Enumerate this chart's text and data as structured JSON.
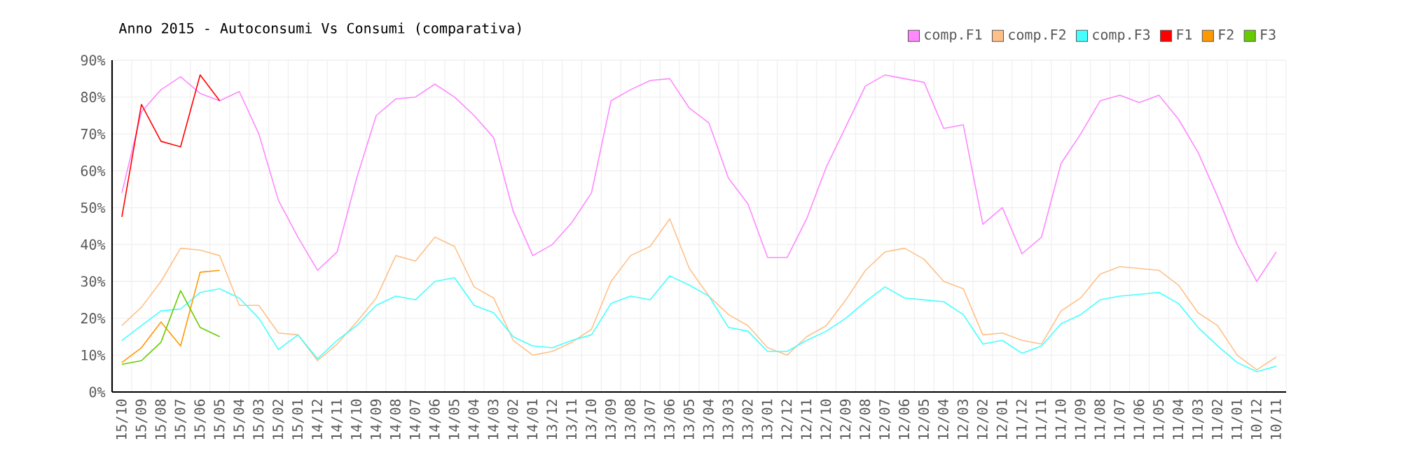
{
  "chart_data": {
    "type": "line",
    "title": "Anno 2015 - Autoconsumi Vs Consumi (comparativa)",
    "categories": [
      "15/10",
      "15/09",
      "15/08",
      "15/07",
      "15/06",
      "15/05",
      "15/04",
      "15/03",
      "15/02",
      "15/01",
      "14/12",
      "14/11",
      "14/10",
      "14/09",
      "14/08",
      "14/07",
      "14/06",
      "14/05",
      "14/04",
      "14/03",
      "14/02",
      "14/01",
      "13/12",
      "13/11",
      "13/10",
      "13/09",
      "13/08",
      "13/07",
      "13/06",
      "13/05",
      "13/04",
      "13/03",
      "13/02",
      "13/01",
      "12/12",
      "12/11",
      "12/10",
      "12/09",
      "12/08",
      "12/07",
      "12/06",
      "12/05",
      "12/04",
      "12/03",
      "12/02",
      "12/01",
      "11/12",
      "11/11",
      "11/10",
      "11/09",
      "11/08",
      "11/07",
      "11/06",
      "11/05",
      "11/04",
      "11/03",
      "11/02",
      "11/01",
      "10/12",
      "10/11"
    ],
    "series": [
      {
        "name": "comp.F1",
        "color": "#ff88ff",
        "values": [
          54,
          76,
          82,
          85.5,
          81,
          79,
          81.5,
          70,
          52,
          42,
          33,
          38,
          58,
          75,
          79.5,
          80,
          83.5,
          80,
          75,
          69,
          49,
          37,
          40,
          46,
          54,
          79,
          82,
          84.5,
          85,
          77,
          73,
          58,
          51,
          36.5,
          36.5,
          47,
          61,
          72,
          83,
          86,
          85,
          84,
          71.5,
          72.5,
          45.5,
          50,
          37.5,
          42,
          62,
          70,
          79,
          80.5,
          78.5,
          80.5,
          74,
          65,
          53,
          40,
          30,
          38
        ]
      },
      {
        "name": "comp.F2",
        "color": "#ffc088",
        "values": [
          18,
          23,
          30,
          39,
          38.5,
          37,
          23.5,
          23.5,
          16,
          15.5,
          8.5,
          13,
          19,
          25.5,
          37,
          35.5,
          42,
          39.5,
          28.5,
          25.5,
          14,
          10,
          11,
          13.5,
          17,
          30,
          37,
          39.5,
          47,
          33.5,
          26,
          21,
          18,
          12,
          10,
          15,
          18,
          25,
          33,
          38,
          39,
          36,
          30,
          28,
          15.5,
          16,
          14,
          13,
          22,
          25.5,
          32,
          34,
          33.5,
          33,
          29,
          21.5,
          18,
          10,
          6,
          9.5
        ]
      },
      {
        "name": "comp.F3",
        "color": "#44ffff",
        "values": [
          14,
          18,
          22,
          22.5,
          27,
          28,
          25.5,
          20,
          11.5,
          15.5,
          9,
          14,
          18,
          23.5,
          26,
          25,
          30,
          31,
          23.5,
          21.5,
          15,
          12.5,
          12,
          14,
          15.5,
          24,
          26,
          25,
          31.5,
          29,
          26,
          17.5,
          16.5,
          11,
          11,
          14,
          16.5,
          20,
          24.5,
          28.5,
          25.5,
          25,
          24.5,
          21,
          13,
          14,
          10.5,
          12.5,
          18.5,
          21,
          25,
          26,
          26.5,
          27,
          24,
          17.5,
          12.5,
          8,
          5.5,
          7
        ]
      },
      {
        "name": "F1",
        "color": "#ff0000",
        "values": [
          47.5,
          78,
          68,
          66.5,
          86,
          79,
          null,
          null,
          null,
          null,
          null,
          null,
          null,
          null,
          null,
          null,
          null,
          null,
          null,
          null,
          null,
          null,
          null,
          null,
          null,
          null,
          null,
          null,
          null,
          null,
          null,
          null,
          null,
          null,
          null,
          null,
          null,
          null,
          null,
          null,
          null,
          null,
          null,
          null,
          null,
          null,
          null,
          null,
          null,
          null,
          null,
          null,
          null,
          null,
          null,
          null,
          null,
          null,
          null,
          null
        ]
      },
      {
        "name": "F2",
        "color": "#ff9900",
        "values": [
          8,
          12,
          19,
          12.5,
          32.5,
          33,
          null,
          null,
          null,
          null,
          null,
          null,
          null,
          null,
          null,
          null,
          null,
          null,
          null,
          null,
          null,
          null,
          null,
          null,
          null,
          null,
          null,
          null,
          null,
          null,
          null,
          null,
          null,
          null,
          null,
          null,
          null,
          null,
          null,
          null,
          null,
          null,
          null,
          null,
          null,
          null,
          null,
          null,
          null,
          null,
          null,
          null,
          null,
          null,
          null,
          null,
          null,
          null,
          null,
          null
        ]
      },
      {
        "name": "F3",
        "color": "#66cc00",
        "values": [
          7.5,
          8.5,
          13.5,
          27.5,
          17.5,
          15,
          null,
          null,
          null,
          null,
          null,
          null,
          null,
          null,
          null,
          null,
          null,
          null,
          null,
          null,
          null,
          null,
          null,
          null,
          null,
          null,
          null,
          null,
          null,
          null,
          null,
          null,
          null,
          null,
          null,
          null,
          null,
          null,
          null,
          null,
          null,
          null,
          null,
          null,
          null,
          null,
          null,
          null,
          null,
          null,
          null,
          null,
          null,
          null,
          null,
          null,
          null,
          null,
          null,
          null
        ]
      }
    ],
    "ylim": [
      0,
      90
    ],
    "yticks": [
      {
        "value": 0,
        "label": "0%"
      },
      {
        "value": 10,
        "label": "10%"
      },
      {
        "value": 20,
        "label": "20%"
      },
      {
        "value": 30,
        "label": "30%"
      },
      {
        "value": 40,
        "label": "40%"
      },
      {
        "value": 50,
        "label": "50%"
      },
      {
        "value": 60,
        "label": "60%"
      },
      {
        "value": 70,
        "label": "70%"
      },
      {
        "value": 80,
        "label": "80%"
      },
      {
        "value": 90,
        "label": "90%"
      }
    ],
    "grid": true,
    "legend": "top right",
    "marker": "none",
    "line_style": "solid"
  }
}
